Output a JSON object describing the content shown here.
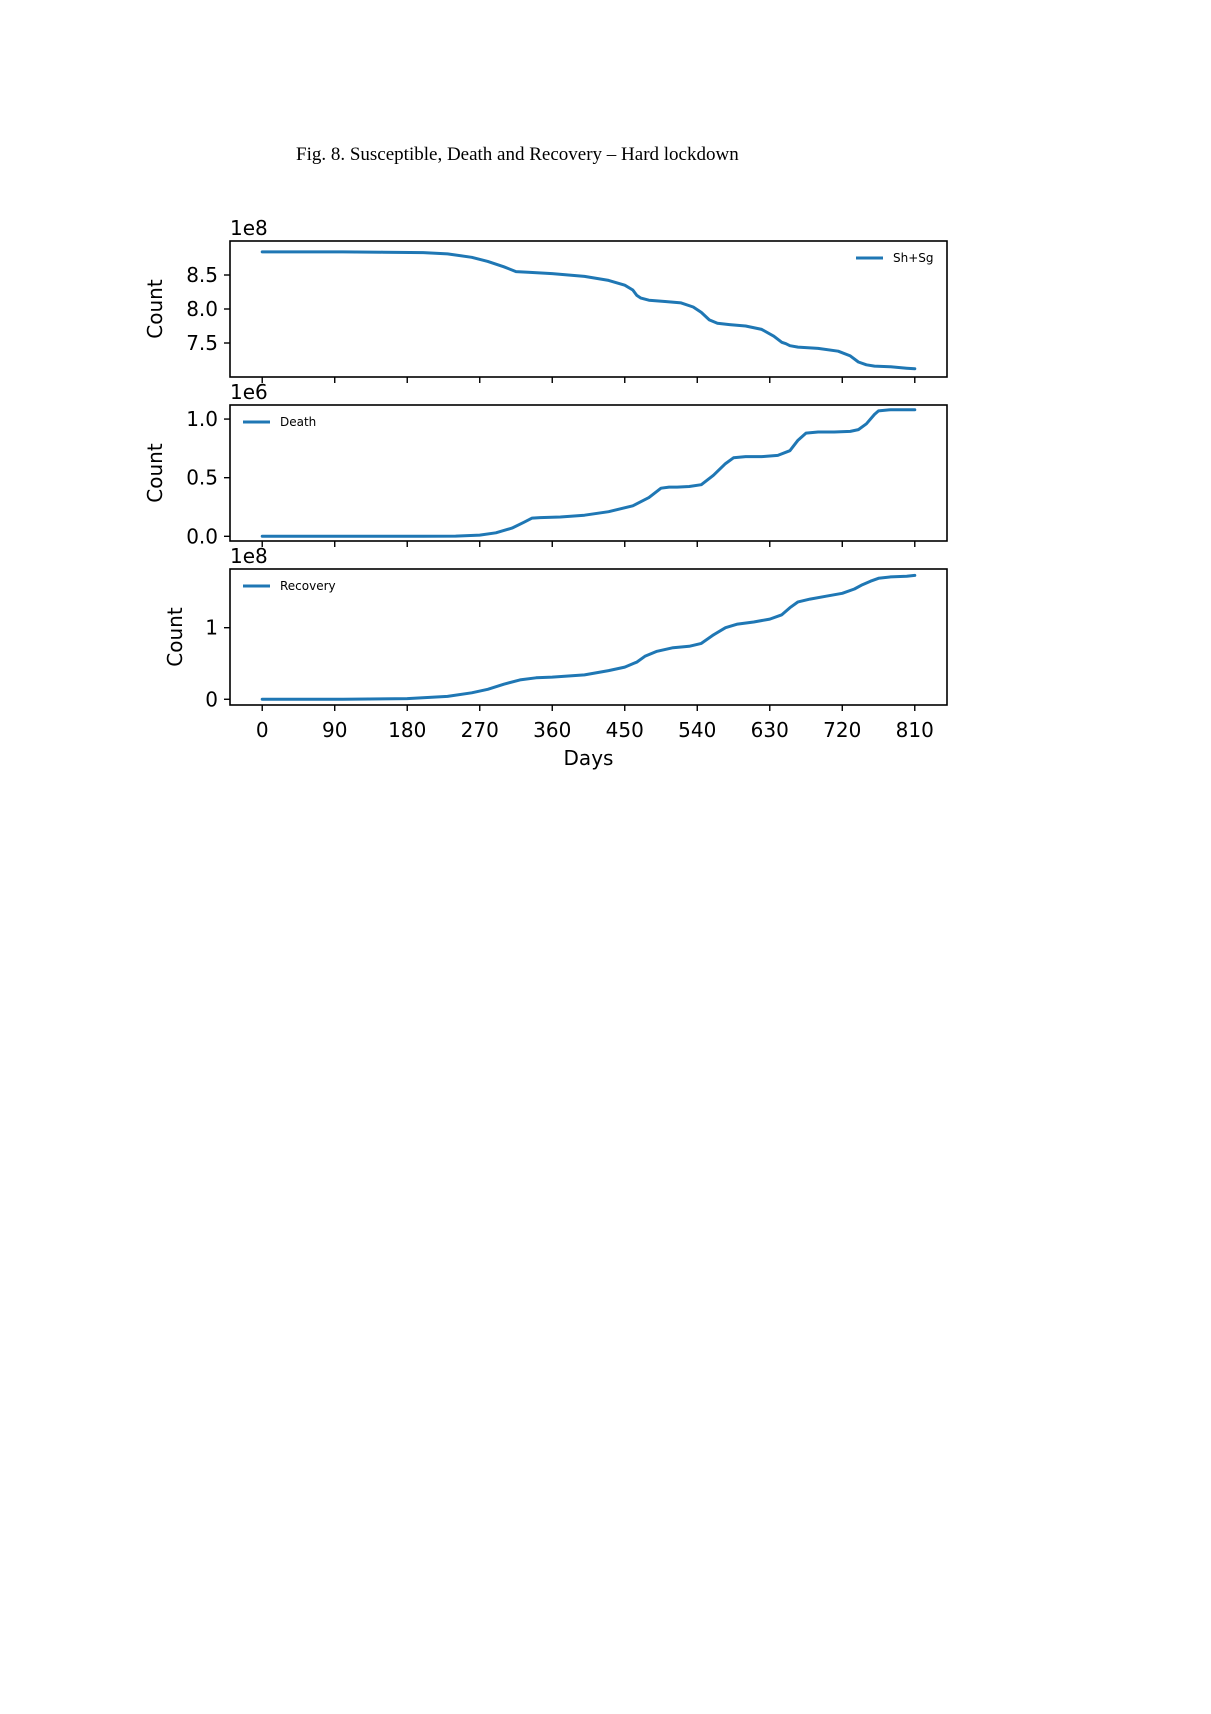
{
  "caption": "Fig. 8. Susceptible, Death and Recovery –  Hard lockdown",
  "chart_data": [
    {
      "type": "line",
      "series": [
        {
          "name": "Sh+Sg",
          "color": "#1f77b4",
          "x": [
            0,
            50,
            100,
            150,
            200,
            230,
            260,
            280,
            300,
            315,
            330,
            360,
            400,
            430,
            450,
            460,
            465,
            470,
            480,
            500,
            520,
            535,
            545,
            555,
            565,
            580,
            600,
            620,
            635,
            645,
            650,
            655,
            665,
            690,
            715,
            730,
            740,
            750,
            760,
            780,
            800,
            810
          ],
          "y": [
            8.84,
            8.84,
            8.84,
            8.835,
            8.83,
            8.81,
            8.76,
            8.7,
            8.62,
            8.55,
            8.54,
            8.52,
            8.48,
            8.42,
            8.35,
            8.28,
            8.2,
            8.16,
            8.13,
            8.11,
            8.09,
            8.03,
            7.95,
            7.84,
            7.79,
            7.77,
            7.75,
            7.7,
            7.6,
            7.51,
            7.49,
            7.46,
            7.44,
            7.42,
            7.38,
            7.31,
            7.22,
            7.18,
            7.16,
            7.15,
            7.13,
            7.12
          ]
        }
      ],
      "ylabel": "Count",
      "offset_text": "1e8",
      "yticks": [
        "7.5",
        "8.0",
        "8.5"
      ],
      "ytick_values": [
        7.5,
        8.0,
        8.5
      ],
      "ylim": [
        7.0,
        9.0
      ],
      "legend_loc": "upper right"
    },
    {
      "type": "line",
      "series": [
        {
          "name": "Death",
          "color": "#1f77b4",
          "x": [
            0,
            100,
            200,
            240,
            270,
            290,
            310,
            325,
            335,
            345,
            370,
            400,
            430,
            460,
            480,
            495,
            505,
            515,
            530,
            545,
            560,
            575,
            585,
            600,
            620,
            640,
            655,
            665,
            675,
            690,
            710,
            730,
            740,
            750,
            760,
            765,
            780,
            800,
            810
          ],
          "y": [
            0,
            0,
            0,
            0.002,
            0.01,
            0.03,
            0.07,
            0.12,
            0.155,
            0.16,
            0.165,
            0.18,
            0.21,
            0.26,
            0.33,
            0.41,
            0.42,
            0.42,
            0.425,
            0.44,
            0.52,
            0.62,
            0.67,
            0.68,
            0.68,
            0.69,
            0.73,
            0.82,
            0.88,
            0.89,
            0.89,
            0.895,
            0.91,
            0.96,
            1.04,
            1.07,
            1.08,
            1.08,
            1.08
          ]
        }
      ],
      "ylabel": "Count",
      "offset_text": "1e6",
      "yticks": [
        "0.0",
        "0.5",
        "1.0"
      ],
      "ytick_values": [
        0,
        0.5,
        1.0
      ],
      "ylim": [
        -0.04,
        1.12
      ],
      "legend_loc": "upper left"
    },
    {
      "type": "line",
      "series": [
        {
          "name": "Recovery",
          "color": "#1f77b4",
          "x": [
            0,
            100,
            180,
            230,
            260,
            280,
            300,
            320,
            340,
            360,
            400,
            430,
            450,
            465,
            475,
            490,
            510,
            530,
            545,
            560,
            575,
            590,
            610,
            630,
            645,
            655,
            665,
            680,
            700,
            720,
            735,
            745,
            755,
            765,
            780,
            800,
            810
          ],
          "y": [
            0,
            0,
            0.01,
            0.04,
            0.09,
            0.14,
            0.21,
            0.27,
            0.3,
            0.31,
            0.34,
            0.4,
            0.45,
            0.52,
            0.6,
            0.67,
            0.72,
            0.74,
            0.78,
            0.9,
            1.0,
            1.05,
            1.08,
            1.12,
            1.18,
            1.28,
            1.36,
            1.4,
            1.44,
            1.48,
            1.54,
            1.6,
            1.65,
            1.69,
            1.71,
            1.72,
            1.73
          ]
        }
      ],
      "ylabel": "Count",
      "offset_text": "1e8",
      "yticks": [
        "0",
        "1"
      ],
      "ytick_values": [
        0,
        1
      ],
      "ylim": [
        -0.08,
        1.82
      ],
      "legend_loc": "upper left",
      "xlabel": "Days",
      "xticks": [
        "0",
        "90",
        "180",
        "270",
        "360",
        "450",
        "540",
        "630",
        "720",
        "810"
      ],
      "xtick_values": [
        0,
        90,
        180,
        270,
        360,
        450,
        540,
        630,
        720,
        810
      ],
      "xlim": [
        -40,
        850
      ]
    }
  ]
}
